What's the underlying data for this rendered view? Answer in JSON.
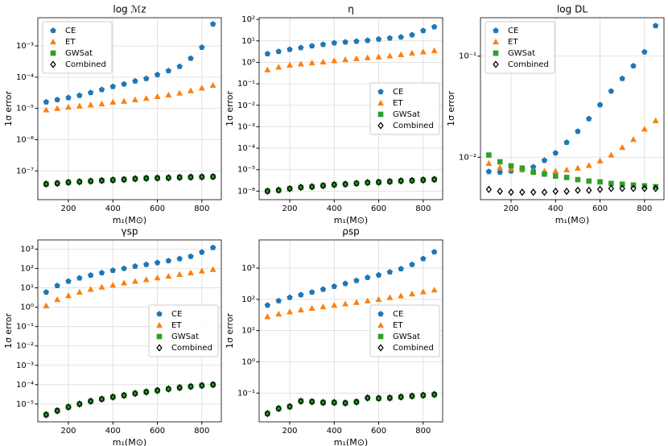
{
  "chart_data": [
    {
      "type": "scatter",
      "title": "log ℳz",
      "xlabel": "m₁(M⊙)",
      "ylabel": "1σ error",
      "yscale": "log",
      "grid": true,
      "legend_loc": "upper left",
      "x": [
        100,
        150,
        200,
        250,
        300,
        350,
        400,
        450,
        500,
        550,
        600,
        650,
        700,
        750,
        800,
        850
      ],
      "xlim": [
        62.5,
        887.5
      ],
      "xticks": [
        200,
        400,
        600,
        800
      ],
      "ylim": [
        1.2e-08,
        0.008
      ],
      "yticks": [
        {
          "value": 1e-07,
          "label": "10⁻⁷"
        },
        {
          "value": 1e-06,
          "label": "10⁻⁶"
        },
        {
          "value": 1e-05,
          "label": "10⁻⁵"
        },
        {
          "value": 0.0001,
          "label": "10⁻⁴"
        },
        {
          "value": 0.001,
          "label": "10⁻³"
        }
      ],
      "series": [
        {
          "name": "CE",
          "color": "#1f77b4",
          "marker": "pentagon",
          "values": [
            1.6e-05,
            1.9e-05,
            2.2e-05,
            2.6e-05,
            3.2e-05,
            4e-05,
            5e-05,
            6e-05,
            7.5e-05,
            9e-05,
            0.00012,
            0.00016,
            0.00022,
            0.0004,
            0.0009,
            0.005
          ]
        },
        {
          "name": "ET",
          "color": "#ff7f0e",
          "marker": "triangle",
          "values": [
            9e-06,
            1e-05,
            1.1e-05,
            1.2e-05,
            1.3e-05,
            1.4e-05,
            1.6e-05,
            1.7e-05,
            1.9e-05,
            2.1e-05,
            2.4e-05,
            2.7e-05,
            3.1e-05,
            3.7e-05,
            4.5e-05,
            5.5e-05
          ]
        },
        {
          "name": "GWSat",
          "color": "#2ca02c",
          "marker": "square",
          "values": [
            3.8e-08,
            4e-08,
            4.3e-08,
            4.5e-08,
            4.7e-08,
            4.9e-08,
            5.1e-08,
            5.3e-08,
            5.6e-08,
            5.8e-08,
            5.9e-08,
            6e-08,
            6.2e-08,
            6.3e-08,
            6.4e-08,
            6.5e-08
          ]
        },
        {
          "name": "Combined",
          "color": "#000000",
          "marker": "diamond",
          "values": [
            3.8e-08,
            4e-08,
            4.3e-08,
            4.5e-08,
            4.7e-08,
            4.9e-08,
            5.1e-08,
            5.3e-08,
            5.6e-08,
            5.8e-08,
            5.9e-08,
            6e-08,
            6.2e-08,
            6.3e-08,
            6.4e-08,
            6.5e-08
          ]
        }
      ]
    },
    {
      "type": "scatter",
      "title": "η",
      "xlabel": "m₁(M⊙)",
      "ylabel": "1σ error",
      "yscale": "log",
      "grid": true,
      "legend_loc": "center right",
      "x": [
        100,
        150,
        200,
        250,
        300,
        350,
        400,
        450,
        500,
        550,
        600,
        650,
        700,
        750,
        800,
        850
      ],
      "xlim": [
        62.5,
        887.5
      ],
      "xticks": [
        200,
        400,
        600,
        800
      ],
      "ylim": [
        4e-07,
        120
      ],
      "yticks": [
        {
          "value": 1e-06,
          "label": "10⁻⁶"
        },
        {
          "value": 1e-05,
          "label": "10⁻⁵"
        },
        {
          "value": 0.0001,
          "label": "10⁻⁴"
        },
        {
          "value": 0.001,
          "label": "10⁻³"
        },
        {
          "value": 0.01,
          "label": "10⁻²"
        },
        {
          "value": 0.1,
          "label": "10⁻¹"
        },
        {
          "value": 1,
          "label": "10⁰"
        },
        {
          "value": 10,
          "label": "10¹"
        },
        {
          "value": 100,
          "label": "10²"
        }
      ],
      "series": [
        {
          "name": "CE",
          "color": "#1f77b4",
          "marker": "pentagon",
          "values": [
            2.5,
            3.2,
            4,
            4.8,
            5.8,
            6.8,
            8,
            8.8,
            9.5,
            10.5,
            12,
            13.5,
            15,
            19,
            30,
            45
          ]
        },
        {
          "name": "ET",
          "color": "#ff7f0e",
          "marker": "triangle",
          "values": [
            0.45,
            0.6,
            0.75,
            0.85,
            0.95,
            1.05,
            1.2,
            1.35,
            1.5,
            1.65,
            1.8,
            2,
            2.3,
            2.7,
            3.1,
            3.5
          ]
        },
        {
          "name": "GWSat",
          "color": "#2ca02c",
          "marker": "square",
          "values": [
            1e-06,
            1.1e-06,
            1.3e-06,
            1.5e-06,
            1.6e-06,
            1.8e-06,
            2e-06,
            2.1e-06,
            2.3e-06,
            2.5e-06,
            2.6e-06,
            2.8e-06,
            3e-06,
            3.1e-06,
            3.3e-06,
            3.5e-06
          ]
        },
        {
          "name": "Combined",
          "color": "#000000",
          "marker": "diamond",
          "values": [
            1e-06,
            1.1e-06,
            1.3e-06,
            1.5e-06,
            1.6e-06,
            1.8e-06,
            2e-06,
            2.1e-06,
            2.3e-06,
            2.5e-06,
            2.6e-06,
            2.8e-06,
            3e-06,
            3.1e-06,
            3.3e-06,
            3.5e-06
          ]
        }
      ]
    },
    {
      "type": "scatter",
      "title": "log DL",
      "xlabel": "m₁(M⊙)",
      "ylabel": "1σ error",
      "yscale": "log",
      "grid": true,
      "legend_loc": "upper left",
      "x": [
        100,
        150,
        200,
        250,
        300,
        350,
        400,
        450,
        500,
        550,
        600,
        650,
        700,
        750,
        800,
        850
      ],
      "xlim": [
        62.5,
        887.5
      ],
      "xticks": [
        200,
        400,
        600,
        800
      ],
      "ylim": [
        0.0038,
        0.24
      ],
      "yticks": [
        {
          "value": 0.01,
          "label": "10⁻²"
        },
        {
          "value": 0.1,
          "label": "10⁻¹"
        }
      ],
      "series": [
        {
          "name": "CE",
          "color": "#1f77b4",
          "marker": "pentagon",
          "values": [
            0.0072,
            0.0071,
            0.0073,
            0.0075,
            0.008,
            0.0093,
            0.011,
            0.014,
            0.018,
            0.024,
            0.033,
            0.045,
            0.06,
            0.08,
            0.11,
            0.2
          ]
        },
        {
          "name": "ET",
          "color": "#ff7f0e",
          "marker": "triangle",
          "values": [
            0.0087,
            0.0079,
            0.0077,
            0.0076,
            0.0073,
            0.0073,
            0.0073,
            0.0075,
            0.0078,
            0.0083,
            0.0092,
            0.0105,
            0.0125,
            0.015,
            0.019,
            0.023
          ]
        },
        {
          "name": "GWSat",
          "color": "#2ca02c",
          "marker": "square",
          "values": [
            0.0105,
            0.009,
            0.0082,
            0.0078,
            0.0071,
            0.0068,
            0.0065,
            0.0063,
            0.006,
            0.0058,
            0.0057,
            0.0055,
            0.0054,
            0.0053,
            0.0052,
            0.0051
          ]
        },
        {
          "name": "Combined",
          "color": "#000000",
          "marker": "diamond",
          "values": [
            0.0048,
            0.0046,
            0.0045,
            0.0045,
            0.0045,
            0.0045,
            0.0046,
            0.0046,
            0.0047,
            0.0047,
            0.0048,
            0.0049,
            0.0049,
            0.0049,
            0.0049,
            0.0049
          ]
        }
      ]
    },
    {
      "type": "scatter",
      "title": "γsp",
      "xlabel": "m₁(M⊙)",
      "ylabel": "1σ error",
      "yscale": "log",
      "grid": true,
      "legend_loc": "center right",
      "x": [
        100,
        150,
        200,
        250,
        300,
        350,
        400,
        450,
        500,
        550,
        600,
        650,
        700,
        750,
        800,
        850
      ],
      "xlim": [
        62.5,
        887.5
      ],
      "xticks": [
        200,
        400,
        600,
        800
      ],
      "ylim": [
        1.2e-06,
        3000
      ],
      "yticks": [
        {
          "value": 1e-05,
          "label": "10⁻⁵"
        },
        {
          "value": 0.0001,
          "label": "10⁻⁴"
        },
        {
          "value": 0.001,
          "label": "10⁻³"
        },
        {
          "value": 0.01,
          "label": "10⁻²"
        },
        {
          "value": 0.1,
          "label": "10⁻¹"
        },
        {
          "value": 1,
          "label": "10⁰"
        },
        {
          "value": 10,
          "label": "10¹"
        },
        {
          "value": 100,
          "label": "10²"
        },
        {
          "value": 1000,
          "label": "10³"
        }
      ],
      "series": [
        {
          "name": "CE",
          "color": "#1f77b4",
          "marker": "pentagon",
          "values": [
            6,
            13,
            22,
            32,
            45,
            60,
            80,
            100,
            130,
            160,
            200,
            250,
            320,
            420,
            700,
            1200
          ]
        },
        {
          "name": "ET",
          "color": "#ff7f0e",
          "marker": "triangle",
          "values": [
            1.2,
            2.5,
            4,
            6,
            8.5,
            11,
            14,
            18,
            22,
            27,
            33,
            40,
            50,
            60,
            75,
            90
          ]
        },
        {
          "name": "GWSat",
          "color": "#2ca02c",
          "marker": "square",
          "values": [
            2.8e-06,
            4.5e-06,
            7e-06,
            1e-05,
            1.4e-05,
            1.8e-05,
            2.3e-05,
            2.8e-05,
            3.5e-05,
            4.2e-05,
            5e-05,
            6e-05,
            7e-05,
            8e-05,
            9e-05,
            0.0001
          ]
        },
        {
          "name": "Combined",
          "color": "#000000",
          "marker": "diamond",
          "values": [
            2.8e-06,
            4.5e-06,
            7e-06,
            1e-05,
            1.4e-05,
            1.8e-05,
            2.3e-05,
            2.8e-05,
            3.5e-05,
            4.2e-05,
            5e-05,
            6e-05,
            7e-05,
            8e-05,
            9e-05,
            0.0001
          ]
        }
      ]
    },
    {
      "type": "scatter",
      "title": "ρsp",
      "xlabel": "m₁(M⊙)",
      "ylabel": "1σ error",
      "yscale": "log",
      "grid": true,
      "legend_loc": "center right",
      "x": [
        100,
        150,
        200,
        250,
        300,
        350,
        400,
        450,
        500,
        550,
        600,
        650,
        700,
        750,
        800,
        850
      ],
      "xlim": [
        62.5,
        887.5
      ],
      "xticks": [
        200,
        400,
        600,
        800
      ],
      "ylim": [
        0.012,
        8000
      ],
      "yticks": [
        {
          "value": 0.1,
          "label": "10⁻¹"
        },
        {
          "value": 1,
          "label": "10⁰"
        },
        {
          "value": 10,
          "label": "10¹"
        },
        {
          "value": 100,
          "label": "10²"
        },
        {
          "value": 1000,
          "label": "10³"
        }
      ],
      "series": [
        {
          "name": "CE",
          "color": "#1f77b4",
          "marker": "pentagon",
          "values": [
            65,
            90,
            115,
            140,
            170,
            210,
            260,
            320,
            400,
            500,
            600,
            750,
            950,
            1300,
            2000,
            3300
          ]
        },
        {
          "name": "ET",
          "color": "#ff7f0e",
          "marker": "triangle",
          "values": [
            28,
            34,
            40,
            46,
            52,
            58,
            65,
            72,
            80,
            90,
            100,
            115,
            130,
            150,
            175,
            200
          ]
        },
        {
          "name": "GWSat",
          "color": "#2ca02c",
          "marker": "square",
          "values": [
            0.022,
            0.032,
            0.037,
            0.055,
            0.053,
            0.05,
            0.05,
            0.048,
            0.052,
            0.07,
            0.068,
            0.07,
            0.075,
            0.08,
            0.085,
            0.09
          ]
        },
        {
          "name": "Combined",
          "color": "#000000",
          "marker": "diamond",
          "values": [
            0.022,
            0.032,
            0.037,
            0.055,
            0.053,
            0.05,
            0.05,
            0.048,
            0.052,
            0.07,
            0.068,
            0.07,
            0.075,
            0.08,
            0.085,
            0.09
          ]
        }
      ]
    }
  ]
}
